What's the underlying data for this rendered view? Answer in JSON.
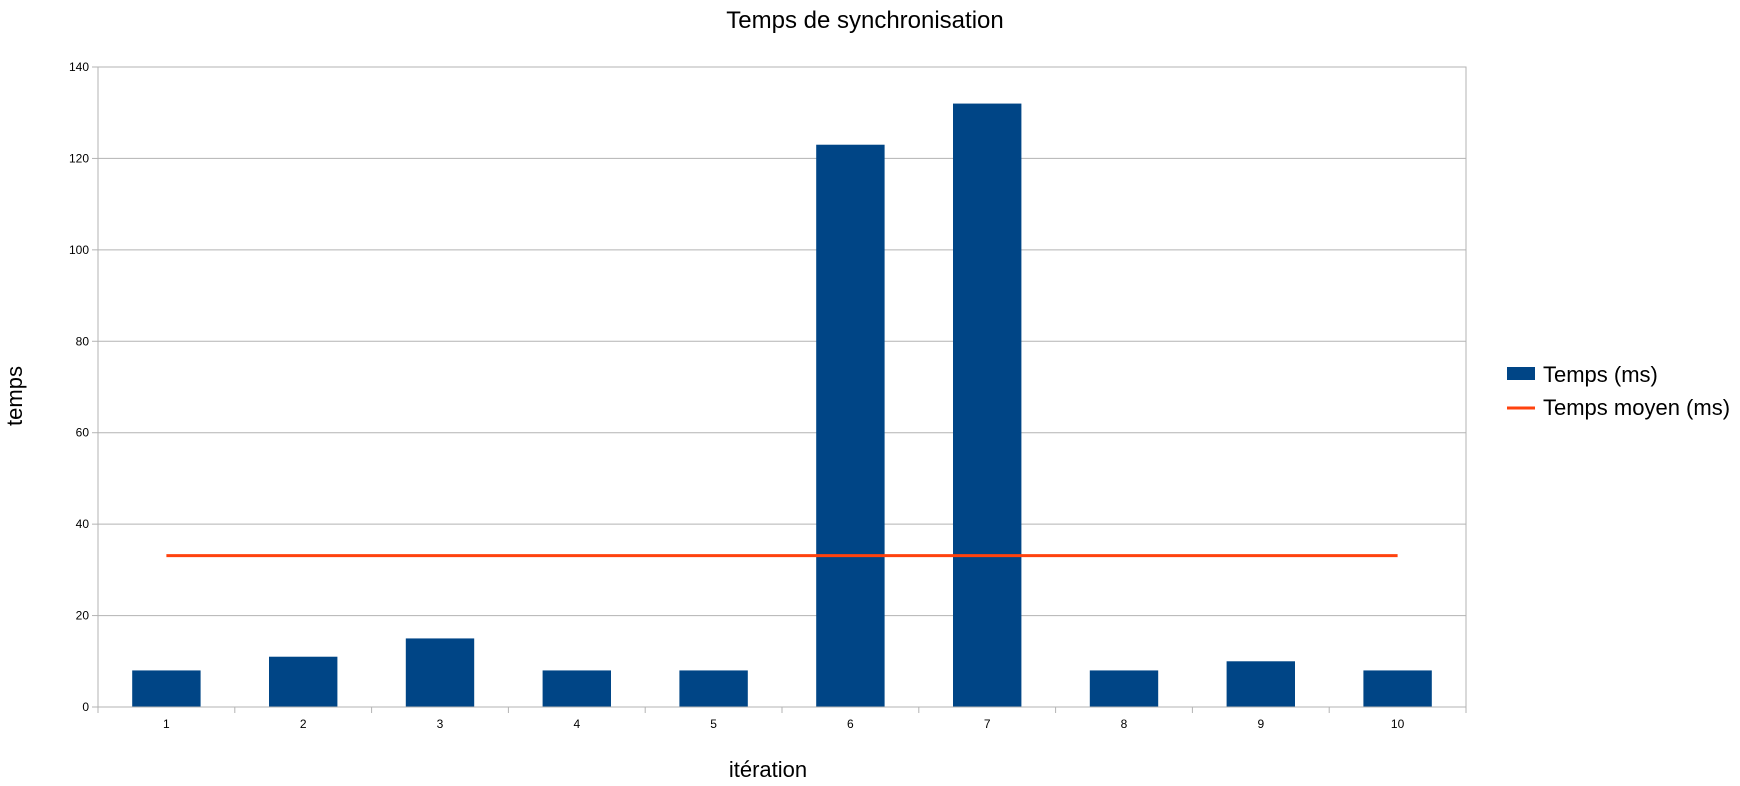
{
  "chart_data": {
    "type": "bar",
    "title": "Temps de synchronisation",
    "xlabel": "itération",
    "ylabel": "temps",
    "categories": [
      "1",
      "2",
      "3",
      "4",
      "5",
      "6",
      "7",
      "8",
      "9",
      "10"
    ],
    "series": [
      {
        "name": "Temps (ms)",
        "type": "bar",
        "color": "#004586",
        "values": [
          8,
          11,
          15,
          8,
          8,
          123,
          132,
          8,
          10,
          8
        ]
      },
      {
        "name": "Temps moyen (ms)",
        "type": "line",
        "color": "#ff420e",
        "values": [
          33.1,
          33.1,
          33.1,
          33.1,
          33.1,
          33.1,
          33.1,
          33.1,
          33.1,
          33.1
        ]
      }
    ],
    "ylim": [
      0,
      140
    ],
    "yticks": [
      0,
      20,
      40,
      60,
      80,
      100,
      120,
      140
    ],
    "grid": true,
    "legend_position": "right"
  }
}
